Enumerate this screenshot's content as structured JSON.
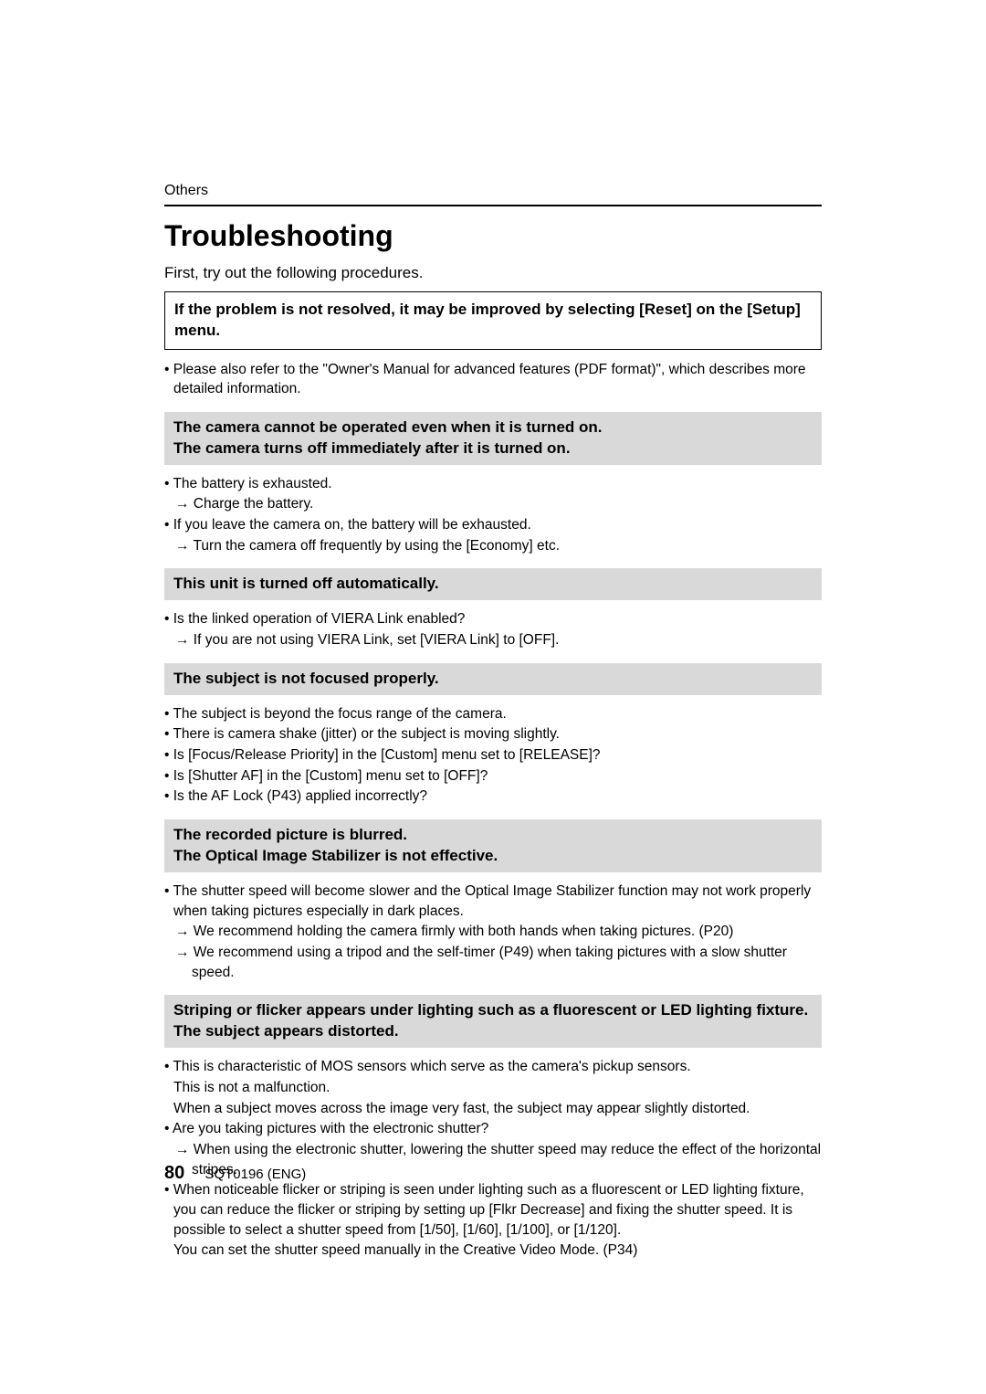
{
  "colors": {
    "background": "#ffffff",
    "text": "#000000",
    "gray_header_bg": "#d9d9d9",
    "border": "#000000"
  },
  "typography": {
    "body_font_family": "Arial, Helvetica, sans-serif",
    "section_label_size": 16,
    "main_title_size": 32,
    "intro_size": 17,
    "boxed_size": 17,
    "gray_header_size": 17,
    "body_size": 15.5,
    "page_num_size": 20,
    "footer_size": 15
  },
  "section_label": "Others",
  "main_title": "Troubleshooting",
  "intro": "First, try out the following procedures.",
  "boxed_note": "If the problem is not resolved, it may be improved by selecting [Reset] on the [Setup] menu.",
  "manual_note": "• Please also refer to the \"Owner's Manual for advanced features (PDF format)\", which describes more detailed information.",
  "sections": [
    {
      "header_line1": "The camera cannot be operated even when it is turned on.",
      "header_line2": "The camera turns off immediately after it is turned on.",
      "items": [
        {
          "type": "item",
          "text": "• The battery is exhausted."
        },
        {
          "type": "arrow",
          "text": "→ Charge the battery."
        },
        {
          "type": "item",
          "text": "• If you leave the camera on, the battery will be exhausted."
        },
        {
          "type": "arrow",
          "text": "→ Turn the camera off frequently by using the [Economy] etc."
        }
      ]
    },
    {
      "header_line1": "This unit is turned off automatically.",
      "header_line2": "",
      "items": [
        {
          "type": "item",
          "text": "• Is the linked operation of VIERA Link enabled?"
        },
        {
          "type": "arrow",
          "text": "→ If you are not using VIERA Link, set [VIERA Link] to [OFF]."
        }
      ]
    },
    {
      "header_line1": "The subject is not focused properly.",
      "header_line2": "",
      "items": [
        {
          "type": "item",
          "text": "• The subject is beyond the focus range of the camera."
        },
        {
          "type": "item",
          "text": "• There is camera shake (jitter) or the subject is moving slightly."
        },
        {
          "type": "item",
          "text": "• Is [Focus/Release Priority] in the [Custom] menu set to [RELEASE]?"
        },
        {
          "type": "item",
          "text": "• Is [Shutter AF] in the [Custom] menu set to [OFF]?"
        },
        {
          "type": "item",
          "text": "• Is the AF Lock (P43) applied incorrectly?"
        }
      ]
    },
    {
      "header_line1": "The recorded picture is blurred.",
      "header_line2": "The Optical Image Stabilizer is not effective.",
      "items": [
        {
          "type": "item",
          "text": "• The shutter speed will become slower and the Optical Image Stabilizer function may not work properly when taking pictures especially in dark places."
        },
        {
          "type": "arrow",
          "text": "→ We recommend holding the camera firmly with both hands when taking pictures. (P20)"
        },
        {
          "type": "arrow",
          "text": "→ We recommend using a tripod and the self-timer (P49) when taking pictures with a slow shutter speed."
        }
      ]
    },
    {
      "header_line1": "Striping or flicker appears under lighting such as a fluorescent or LED lighting fixture.",
      "header_line2": "The subject appears distorted.",
      "items": [
        {
          "type": "item",
          "text": "• This is characteristic of MOS sensors which serve as the camera's pickup sensors."
        },
        {
          "type": "plain",
          "text": "This is not a malfunction."
        },
        {
          "type": "plain",
          "text": "When a subject moves across the image very fast, the subject may appear slightly distorted."
        },
        {
          "type": "item",
          "text": "• Are you taking pictures with the electronic shutter?"
        },
        {
          "type": "arrow",
          "text": "→ When using the electronic shutter, lowering the shutter speed may reduce the effect of the horizontal stripes."
        },
        {
          "type": "item",
          "text": "• When noticeable flicker or striping is seen under lighting such as a fluorescent or LED lighting fixture, you can reduce the flicker or striping by setting up [Flkr Decrease] and fixing the shutter speed. It is possible to select a shutter speed from [1/50], [1/60], [1/100], or [1/120]."
        },
        {
          "type": "plain",
          "text": "You can set the shutter speed manually in the Creative Video Mode. (P34)"
        }
      ]
    }
  ],
  "footer": {
    "page_number": "80",
    "doc_code": "SQT0196 (ENG)"
  }
}
